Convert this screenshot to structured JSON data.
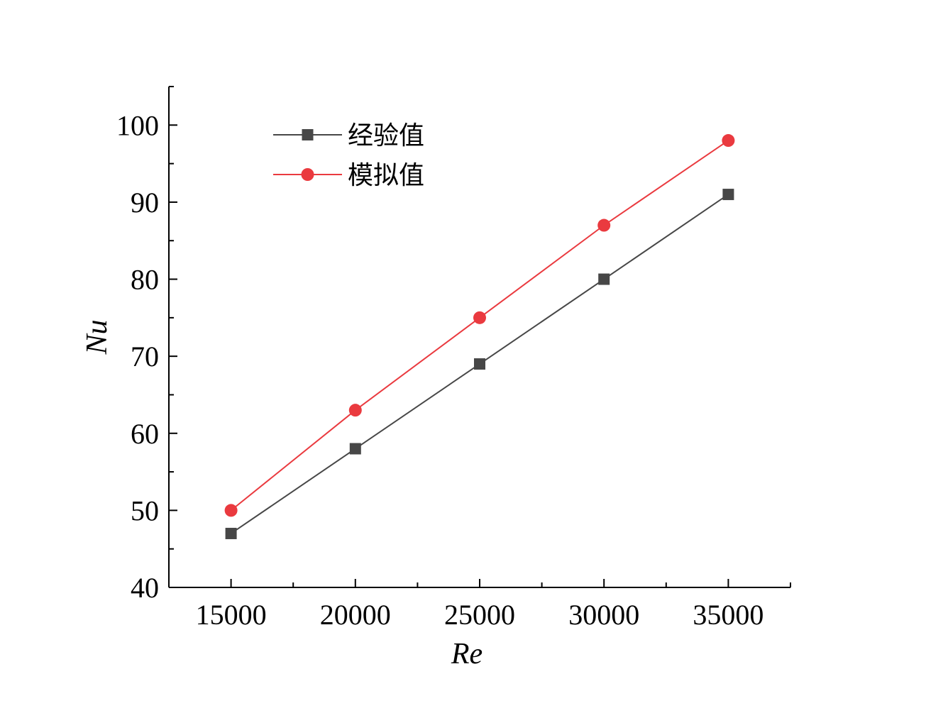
{
  "chart_data": {
    "type": "line",
    "xlabel": "Re",
    "ylabel": "Nu",
    "x": [
      15000,
      20000,
      25000,
      30000,
      35000
    ],
    "xlim": [
      12500,
      37500
    ],
    "ylim": [
      40,
      105
    ],
    "xticks": [
      15000,
      20000,
      25000,
      30000,
      35000
    ],
    "xtick_labels": [
      "15000",
      "20000",
      "25000",
      "30000",
      "35000"
    ],
    "yticks": [
      40,
      50,
      60,
      70,
      80,
      90,
      100
    ],
    "ytick_labels": [
      "40",
      "50",
      "60",
      "70",
      "80",
      "90",
      "100"
    ],
    "grid": false,
    "legend_position": "top-left",
    "series": [
      {
        "name": "经验值",
        "marker": "square",
        "color": "#474747",
        "values": [
          47,
          58,
          69,
          80,
          91
        ]
      },
      {
        "name": "模拟值",
        "marker": "circle",
        "color": "#ea3a3f",
        "values": [
          50,
          63,
          75,
          87,
          98
        ]
      }
    ]
  }
}
